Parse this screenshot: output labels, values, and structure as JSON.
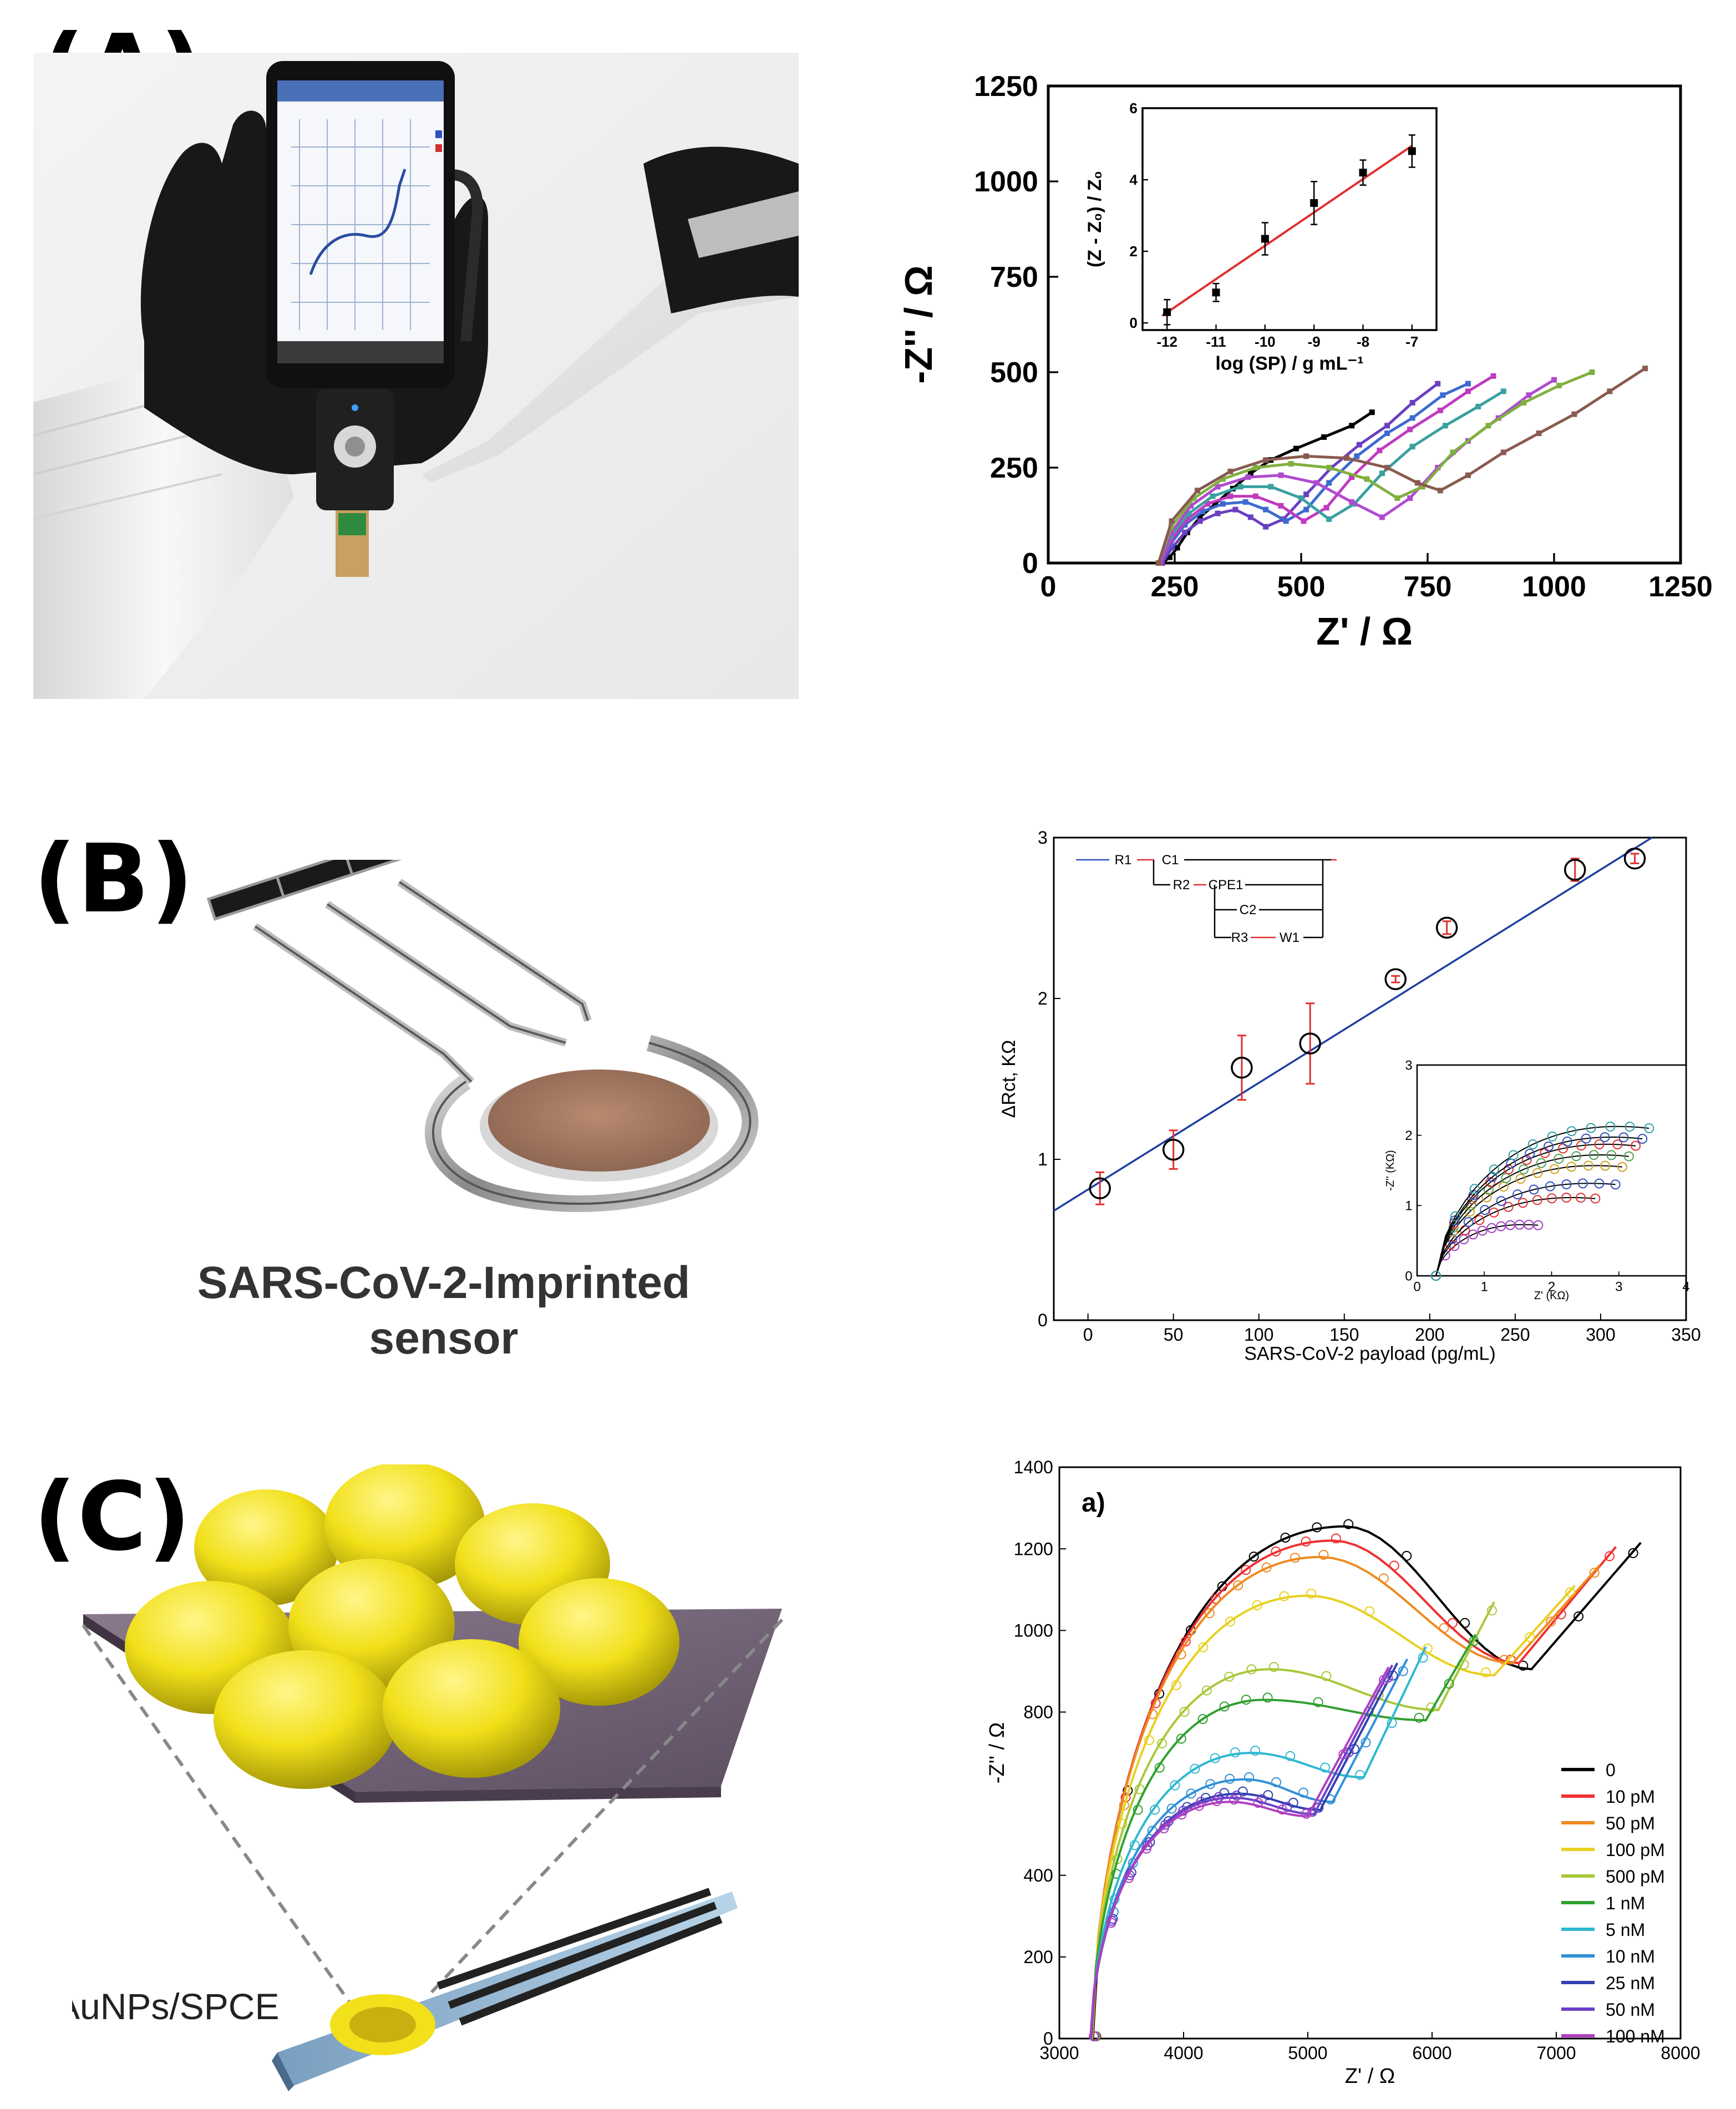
{
  "panels": {
    "A": {
      "label": "(A)"
    },
    "B": {
      "label": "(B)",
      "caption_line1": "SARS-CoV-2-Imprinted",
      "caption_line2": "sensor"
    },
    "C": {
      "label": "(C)",
      "caption": "AuNPs/SPCE"
    }
  },
  "chart_data": [
    {
      "id": "A-main",
      "type": "line",
      "xlabel": "Z' / Ω",
      "ylabel": "-Z'' / Ω",
      "xlim": [
        0,
        1250
      ],
      "ylim": [
        0,
        1250
      ],
      "xticks": [
        0,
        250,
        500,
        750,
        1000,
        1250
      ],
      "yticks": [
        0,
        250,
        500,
        750,
        1000,
        1250
      ],
      "series": [
        {
          "color": "#000000",
          "points": [
            [
              225,
              0
            ],
            [
              240,
              15
            ],
            [
              255,
              40
            ],
            [
              275,
              80
            ],
            [
              300,
              120
            ],
            [
              330,
              155
            ],
            [
              365,
              195
            ],
            [
              400,
              235
            ],
            [
              440,
              270
            ],
            [
              490,
              300
            ],
            [
              545,
              330
            ],
            [
              600,
              360
            ],
            [
              640,
              395
            ]
          ]
        },
        {
          "color": "#6a3fc0",
          "points": [
            [
              225,
              0
            ],
            [
              245,
              40
            ],
            [
              270,
              80
            ],
            [
              300,
              110
            ],
            [
              335,
              130
            ],
            [
              370,
              140
            ],
            [
              400,
              120
            ],
            [
              430,
              95
            ],
            [
              465,
              115
            ],
            [
              510,
              180
            ],
            [
              560,
              250
            ],
            [
              615,
              310
            ],
            [
              670,
              360
            ],
            [
              720,
              420
            ],
            [
              770,
              470
            ]
          ]
        },
        {
          "color": "#3c6ad0",
          "points": [
            [
              222,
              0
            ],
            [
              242,
              50
            ],
            [
              270,
              100
            ],
            [
              305,
              135
            ],
            [
              345,
              155
            ],
            [
              390,
              160
            ],
            [
              430,
              140
            ],
            [
              470,
              110
            ],
            [
              510,
              140
            ],
            [
              555,
              210
            ],
            [
              610,
              280
            ],
            [
              670,
              340
            ],
            [
              720,
              380
            ],
            [
              780,
              440
            ],
            [
              830,
              470
            ]
          ]
        },
        {
          "color": "#c03ac0",
          "points": [
            [
              222,
              0
            ],
            [
              243,
              60
            ],
            [
              275,
              115
            ],
            [
              315,
              155
            ],
            [
              360,
              175
            ],
            [
              410,
              175
            ],
            [
              460,
              150
            ],
            [
              505,
              110
            ],
            [
              550,
              145
            ],
            [
              600,
              225
            ],
            [
              655,
              295
            ],
            [
              715,
              350
            ],
            [
              775,
              400
            ],
            [
              830,
              450
            ],
            [
              880,
              490
            ]
          ]
        },
        {
          "color": "#3aa0a0",
          "points": [
            [
              220,
              0
            ],
            [
              242,
              70
            ],
            [
              278,
              130
            ],
            [
              325,
              175
            ],
            [
              380,
              200
            ],
            [
              440,
              200
            ],
            [
              500,
              170
            ],
            [
              555,
              115
            ],
            [
              605,
              155
            ],
            [
              660,
              235
            ],
            [
              720,
              305
            ],
            [
              785,
              360
            ],
            [
              850,
              410
            ],
            [
              900,
              450
            ]
          ]
        },
        {
          "color": "#b04ad0",
          "points": [
            [
              220,
              0
            ],
            [
              243,
              80
            ],
            [
              282,
              150
            ],
            [
              335,
              200
            ],
            [
              395,
              225
            ],
            [
              460,
              230
            ],
            [
              530,
              210
            ],
            [
              600,
              160
            ],
            [
              660,
              120
            ],
            [
              715,
              170
            ],
            [
              770,
              250
            ],
            [
              830,
              320
            ],
            [
              890,
              380
            ],
            [
              950,
              440
            ],
            [
              1000,
              480
            ]
          ]
        },
        {
          "color": "#80b040",
          "points": [
            [
              218,
              0
            ],
            [
              243,
              95
            ],
            [
              288,
              170
            ],
            [
              345,
              220
            ],
            [
              410,
              250
            ],
            [
              480,
              260
            ],
            [
              555,
              250
            ],
            [
              630,
              220
            ],
            [
              690,
              170
            ],
            [
              740,
              200
            ],
            [
              800,
              290
            ],
            [
              870,
              360
            ],
            [
              940,
              420
            ],
            [
              1010,
              465
            ],
            [
              1075,
              500
            ]
          ]
        },
        {
          "color": "#8a5a50",
          "points": [
            [
              218,
              0
            ],
            [
              244,
              110
            ],
            [
              295,
              190
            ],
            [
              360,
              240
            ],
            [
              430,
              270
            ],
            [
              510,
              280
            ],
            [
              590,
              275
            ],
            [
              670,
              250
            ],
            [
              730,
              210
            ],
            [
              775,
              190
            ],
            [
              830,
              230
            ],
            [
              900,
              290
            ],
            [
              970,
              340
            ],
            [
              1040,
              390
            ],
            [
              1110,
              450
            ],
            [
              1180,
              510
            ]
          ]
        }
      ]
    },
    {
      "id": "A-inset",
      "type": "scatter",
      "xlabel": "log (SP) / g mL⁻¹",
      "ylabel": "(Z - Z₀) / Z₀",
      "xlim": [
        -12.5,
        -6.5
      ],
      "ylim": [
        -0.2,
        6
      ],
      "xticks": [
        -12,
        -11,
        -10,
        -9,
        -8,
        -7
      ],
      "yticks": [
        0,
        2,
        4,
        6
      ],
      "x": [
        -12,
        -11,
        -10,
        -9,
        -8,
        -7
      ],
      "y": [
        0.3,
        0.85,
        2.35,
        3.35,
        4.2,
        4.8
      ],
      "yerr": [
        0.35,
        0.25,
        0.45,
        0.6,
        0.35,
        0.45
      ],
      "fit": [
        [
          -12.1,
          0.2
        ],
        [
          -7,
          4.95
        ]
      ],
      "fit_color": "#e03030"
    },
    {
      "id": "B-main",
      "type": "scatter",
      "xlabel": "SARS-CoV-2 payload (pg/mL)",
      "ylabel": "ΔRct, KΩ",
      "xlim": [
        -20,
        350
      ],
      "ylim": [
        0,
        3
      ],
      "xticks": [
        0,
        50,
        100,
        150,
        200,
        250,
        300,
        350
      ],
      "yticks": [
        0,
        1,
        2,
        3
      ],
      "x": [
        7,
        50,
        90,
        130,
        180,
        210,
        285,
        320
      ],
      "y": [
        0.82,
        1.06,
        1.57,
        1.72,
        2.12,
        2.44,
        2.8,
        2.87
      ],
      "yerr": [
        0.1,
        0.12,
        0.2,
        0.25,
        0.02,
        0.04,
        0.07,
        0.03
      ],
      "fit": [
        [
          -20,
          0.68
        ],
        [
          330,
          3.0
        ]
      ],
      "fit_color": "#2040a0",
      "circuit_labels": [
        "R1",
        "C1",
        "R2",
        "CPE1",
        "C2",
        "R3",
        "W1"
      ]
    },
    {
      "id": "B-inset",
      "type": "scatter",
      "xlabel": "Z' (KΩ)",
      "ylabel": "-Z'' (KΩ)",
      "xlim": [
        0,
        4
      ],
      "ylim": [
        0,
        3
      ],
      "xticks": [
        0,
        1,
        2,
        3,
        4
      ],
      "yticks": [
        0,
        1,
        2,
        3
      ],
      "series": [
        {
          "color": "#a040c0",
          "rmax": 1.8,
          "height": 0.72
        },
        {
          "color": "#e03030",
          "rmax": 2.65,
          "height": 1.1
        },
        {
          "color": "#3050c0",
          "rmax": 2.95,
          "height": 1.3
        },
        {
          "color": "#d0a020",
          "rmax": 3.05,
          "height": 1.55
        },
        {
          "color": "#50a050",
          "rmax": 3.15,
          "height": 1.7
        },
        {
          "color": "#e03030",
          "rmax": 3.25,
          "height": 1.85
        },
        {
          "color": "#3050c0",
          "rmax": 3.35,
          "height": 1.95
        },
        {
          "color": "#30a0a0",
          "rmax": 3.45,
          "height": 2.1
        }
      ]
    },
    {
      "id": "C-main",
      "type": "line",
      "panel_text": "a)",
      "xlabel": "Z' / Ω",
      "ylabel": "-Z'' / Ω",
      "xlim": [
        3000,
        8000
      ],
      "ylim": [
        0,
        1400
      ],
      "xticks": [
        3000,
        4000,
        5000,
        6000,
        7000,
        8000
      ],
      "yticks": [
        0,
        200,
        400,
        800,
        1000,
        1200,
        1400
      ],
      "series": [
        {
          "name": "0",
          "color": "#000000",
          "start": 3270,
          "peakx": 5300,
          "peak": 1255,
          "minx": 6800,
          "min": 905,
          "endx": 7680,
          "end": 1215
        },
        {
          "name": "10 pM",
          "color": "#ee3030",
          "start": 3265,
          "peakx": 5200,
          "peak": 1220,
          "minx": 6700,
          "min": 920,
          "endx": 7480,
          "end": 1205
        },
        {
          "name": "50 pM",
          "color": "#ee8a20",
          "start": 3265,
          "peakx": 5100,
          "peak": 1180,
          "minx": 6650,
          "min": 920,
          "endx": 7350,
          "end": 1160
        },
        {
          "name": "100 pM",
          "color": "#e8d020",
          "start": 3262,
          "peakx": 5000,
          "peak": 1085,
          "minx": 6500,
          "min": 890,
          "endx": 7150,
          "end": 1110
        },
        {
          "name": "500 pM",
          "color": "#a8c838",
          "start": 3260,
          "peakx": 4700,
          "peak": 905,
          "minx": 6050,
          "min": 805,
          "endx": 6500,
          "end": 1070
        },
        {
          "name": "1 nM",
          "color": "#30a030",
          "start": 3258,
          "peakx": 4650,
          "peak": 830,
          "minx": 5950,
          "min": 780,
          "endx": 6350,
          "end": 990
        },
        {
          "name": "5 nM",
          "color": "#30b8d0",
          "start": 3256,
          "peakx": 4550,
          "peak": 700,
          "minx": 5450,
          "min": 640,
          "endx": 5950,
          "end": 960
        },
        {
          "name": "10 nM",
          "color": "#3090d8",
          "start": 3255,
          "peakx": 4500,
          "peak": 635,
          "minx": 5200,
          "min": 580,
          "endx": 5800,
          "end": 930
        },
        {
          "name": "25 nM",
          "color": "#3040b0",
          "start": 3254,
          "peakx": 4450,
          "peak": 600,
          "minx": 5100,
          "min": 560,
          "endx": 5720,
          "end": 920
        },
        {
          "name": "50 nM",
          "color": "#6a40c8",
          "start": 3252,
          "peakx": 4400,
          "peak": 590,
          "minx": 5050,
          "min": 550,
          "endx": 5680,
          "end": 915
        },
        {
          "name": "100 nM",
          "color": "#b040c0",
          "start": 3250,
          "peakx": 4380,
          "peak": 580,
          "minx": 5000,
          "min": 545,
          "endx": 5650,
          "end": 910
        }
      ]
    }
  ]
}
